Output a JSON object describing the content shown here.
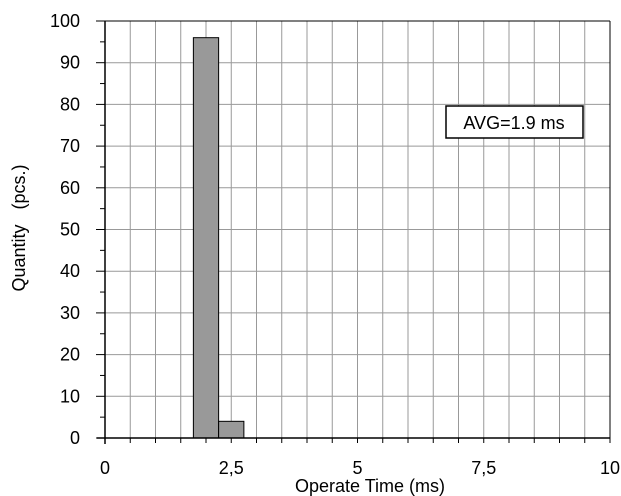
{
  "chart_data": {
    "type": "bar",
    "title": "",
    "xlabel": "Operate Time (ms)",
    "ylabel": "Quantity   (pcs.)",
    "xlim": [
      0,
      10
    ],
    "ylim": [
      0,
      100
    ],
    "x_ticks": [
      0,
      2.5,
      5,
      7.5,
      10
    ],
    "x_tick_labels": [
      "0",
      "2,5",
      "5",
      "7,5",
      "10"
    ],
    "y_ticks": [
      0,
      10,
      20,
      30,
      40,
      50,
      60,
      70,
      80,
      90,
      100
    ],
    "y_tick_labels": [
      "0",
      "10",
      "20",
      "30",
      "40",
      "50",
      "60",
      "70",
      "80",
      "90",
      "100"
    ],
    "grid": true,
    "bin_width": 0.5,
    "bins": [
      {
        "x_start": 1.75,
        "x_end": 2.25,
        "value": 96
      },
      {
        "x_start": 2.25,
        "x_end": 2.75,
        "value": 4
      }
    ],
    "bar_color": "#999999",
    "annotation": "AVG=1.9 ms"
  }
}
